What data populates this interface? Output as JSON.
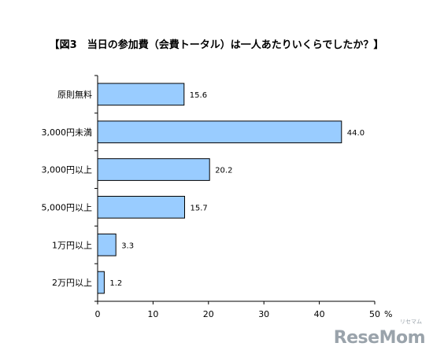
{
  "chart_data": {
    "type": "bar",
    "orientation": "horizontal",
    "title": "【図3　当日の参加費（会費トータル）は一人あたりいくらでしたか？】",
    "categories": [
      "原則無料",
      "3,000円未満",
      "3,000円以上",
      "5,000円以上",
      "1万円以上",
      "2万円以上"
    ],
    "values": [
      15.6,
      44.0,
      20.2,
      15.7,
      3.3,
      1.2
    ],
    "value_labels": [
      "15.6",
      "44.0",
      "20.2",
      "15.7",
      "3.3",
      "1.2"
    ],
    "xlim": [
      0,
      50
    ],
    "x_ticks": [
      "0",
      "10",
      "20",
      "30",
      "40",
      "50"
    ],
    "x_unit": "%",
    "grid": false,
    "bar_color": "#99ccff",
    "bar_edge_color": "#000000"
  },
  "watermark": {
    "brand": "ReseMom",
    "sub": "リセマム"
  }
}
